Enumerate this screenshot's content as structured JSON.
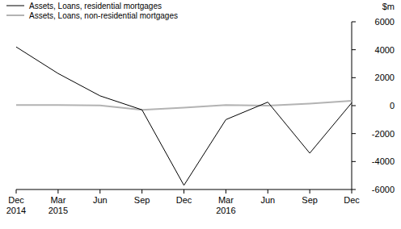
{
  "chart_data": {
    "type": "line",
    "categories": [
      "Dec 2014",
      "Mar 2015",
      "Jun",
      "Sep",
      "Dec",
      "Mar 2016",
      "Jun",
      "Sep",
      "Dec"
    ],
    "series": [
      {
        "name": "Assets, Loans, residential mortgages",
        "color": "#000000",
        "values": [
          4200,
          2300,
          700,
          -300,
          -5700,
          -1000,
          250,
          -3400,
          200
        ]
      },
      {
        "name": "Assets, Loans, non-residential mortgages",
        "color": "#b3b3b3",
        "values": [
          50,
          50,
          20,
          -300,
          -150,
          50,
          0,
          150,
          350
        ]
      }
    ],
    "y_label": "$m",
    "ylim": [
      -6000,
      6000
    ],
    "yticks": [
      -6000,
      -4000,
      -2000,
      0,
      2000,
      4000,
      6000
    ],
    "grid": false,
    "legend": "upper left"
  }
}
